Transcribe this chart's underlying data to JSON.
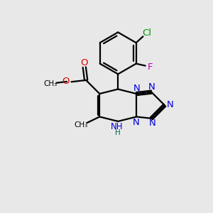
{
  "bg_color": "#e8e8e8",
  "bond_color": "#000000",
  "n_color": "#0000dd",
  "o_color": "#dd0000",
  "cl_color": "#009900",
  "f_color": "#bb00bb",
  "h_color": "#006666",
  "figsize": [
    3.0,
    3.0
  ],
  "dpi": 100,
  "xlim": [
    0,
    10
  ],
  "ylim": [
    0,
    10
  ]
}
